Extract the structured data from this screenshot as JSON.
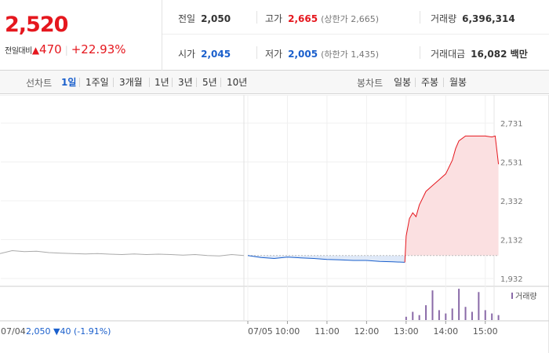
{
  "header": {
    "price": "2,520",
    "change_label": "전일대비",
    "change_icon": "triangle-up-icon",
    "change_amount": "470",
    "change_percent": "+22.93%",
    "up_color": "#e5171e",
    "down_color": "#1a5fcc"
  },
  "stats": {
    "prev_close": {
      "label": "전일",
      "value": "2,050"
    },
    "high": {
      "label": "고가",
      "value": "2,665",
      "sub": "(상한가 2,665)"
    },
    "volume": {
      "label": "거래량",
      "value": "6,396,314"
    },
    "open": {
      "label": "시가",
      "value": "2,045"
    },
    "low": {
      "label": "저가",
      "value": "2,005",
      "sub": "(하한가 1,435)"
    },
    "trade_value": {
      "label": "거래대금",
      "value": "16,082 백만"
    }
  },
  "toolbar": {
    "line_chart_label": "선차트",
    "line_tabs": [
      "1일",
      "1주일",
      "3개월",
      "1년",
      "3년",
      "5년",
      "10년"
    ],
    "active_line_tab": "1일",
    "candle_chart_label": "봉차트",
    "candle_tabs": [
      "일봉",
      "주봉",
      "월봉"
    ]
  },
  "chart_data": {
    "type": "line",
    "y_ticks": [
      "2,731",
      "2,531",
      "2,332",
      "2,132",
      "1,932"
    ],
    "ylim": [
      1932,
      2731
    ],
    "x_ticks": [
      "07/05",
      "10:00",
      "11:00",
      "12:00",
      "13:00",
      "14:00",
      "15:00"
    ],
    "prev_day_label": "07/04",
    "prev_day_summary": "2,050 ▼40 (-1.91%)",
    "volume_legend": "거래량",
    "prev_close": 2050,
    "series": [
      {
        "session": "previous day",
        "color": "#aaaaaa",
        "x": [
          0,
          0.05,
          0.1,
          0.15,
          0.2,
          0.25,
          0.3,
          0.35,
          0.4,
          0.45,
          0.5,
          0.55,
          0.6,
          0.65,
          0.7,
          0.75,
          0.8,
          0.85,
          0.9,
          0.95,
          1
        ],
        "y": [
          2060,
          2075,
          2070,
          2072,
          2065,
          2062,
          2060,
          2058,
          2060,
          2057,
          2055,
          2058,
          2055,
          2057,
          2055,
          2052,
          2055,
          2050,
          2048,
          2055,
          2050
        ]
      },
      {
        "session": "today",
        "colors": {
          "below_prev_close": "#1a5fcc",
          "above_prev_close": "#e5171e"
        },
        "time": [
          "09:00",
          "09:20",
          "09:40",
          "10:00",
          "10:20",
          "10:40",
          "11:00",
          "11:20",
          "11:40",
          "12:00",
          "12:20",
          "12:40",
          "12:58",
          "13:00",
          "13:05",
          "13:10",
          "13:15",
          "13:20",
          "13:30",
          "13:40",
          "13:50",
          "14:00",
          "14:10",
          "14:15",
          "14:20",
          "14:30",
          "14:40",
          "14:50",
          "15:00",
          "15:10",
          "15:15",
          "15:20"
        ],
        "price": [
          2050,
          2040,
          2035,
          2042,
          2038,
          2035,
          2030,
          2028,
          2025,
          2025,
          2020,
          2018,
          2015,
          2150,
          2240,
          2270,
          2250,
          2310,
          2380,
          2410,
          2440,
          2470,
          2540,
          2600,
          2640,
          2665,
          2665,
          2665,
          2665,
          2660,
          2665,
          2520
        ]
      }
    ],
    "volume": {
      "color": "#8a6aa8",
      "time": [
        "13:00",
        "13:10",
        "13:20",
        "13:30",
        "13:40",
        "13:50",
        "14:00",
        "14:10",
        "14:20",
        "14:30",
        "14:40",
        "14:50",
        "15:00",
        "15:10",
        "15:20"
      ],
      "level": [
        0.1,
        0.25,
        0.15,
        0.45,
        0.9,
        0.3,
        0.2,
        0.35,
        0.95,
        0.4,
        0.25,
        0.85,
        0.3,
        0.2,
        0.15
      ]
    }
  }
}
